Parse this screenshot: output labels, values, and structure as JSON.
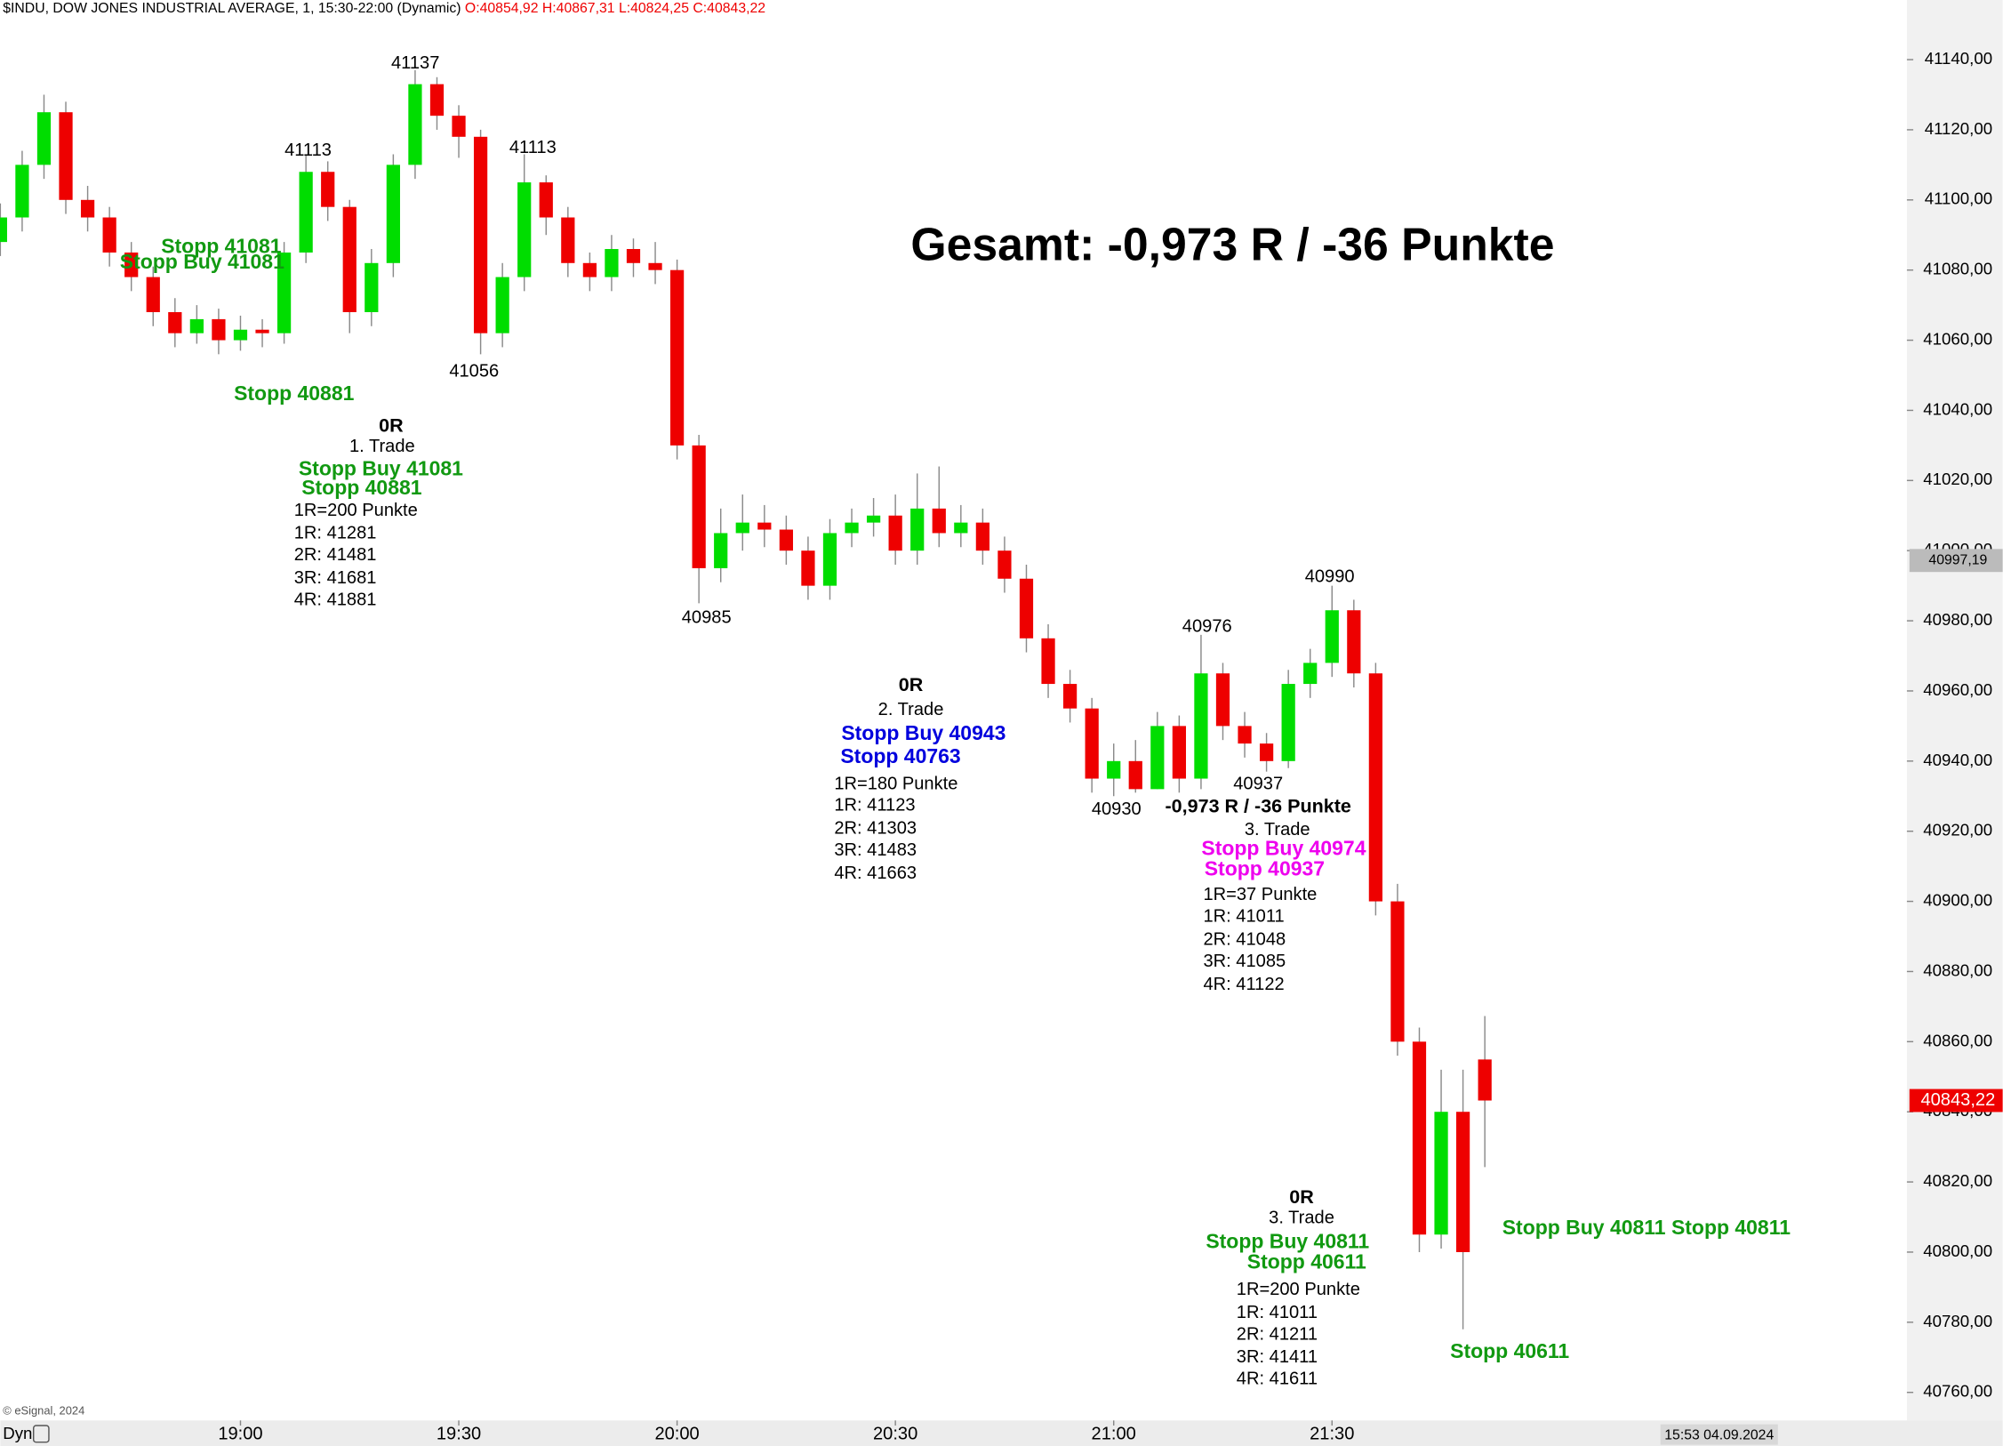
{
  "header": {
    "symbol": "$INDU, DOW JONES INDUSTRIAL AVERAGE, 1, 15:30-22:00 (Dynamic)",
    "ohlc": "O:40854,92 H:40867,31 L:40824,25 C:40843,22"
  },
  "chart_data": {
    "type": "candlestick",
    "x": [
      "18:27",
      "18:30",
      "18:33",
      "18:36",
      "18:39",
      "18:42",
      "18:45",
      "18:48",
      "18:51",
      "18:54",
      "18:57",
      "19:00",
      "19:03",
      "19:06",
      "19:09",
      "19:12",
      "19:15",
      "19:18",
      "19:21",
      "19:24",
      "19:27",
      "19:30",
      "19:33",
      "19:36",
      "19:39",
      "19:42",
      "19:45",
      "19:48",
      "19:51",
      "19:54",
      "19:57",
      "20:00",
      "20:03",
      "20:06",
      "20:09",
      "20:12",
      "20:15",
      "20:18",
      "20:21",
      "20:24",
      "20:27",
      "20:30",
      "20:33",
      "20:36",
      "20:39",
      "20:42",
      "20:45",
      "20:48",
      "20:51",
      "20:54",
      "20:57",
      "21:00",
      "21:03",
      "21:06",
      "21:09",
      "21:12",
      "21:15",
      "21:18",
      "21:21",
      "21:24",
      "21:27",
      "21:30",
      "21:33",
      "21:36",
      "21:39",
      "21:42",
      "21:45",
      "21:48",
      "21:51"
    ],
    "open": [
      41088,
      41095,
      41110,
      41125,
      41100,
      41095,
      41085,
      41078,
      41068,
      41062,
      41066,
      41060,
      41063,
      41062,
      41085,
      41108,
      41098,
      41068,
      41082,
      41110,
      41133,
      41124,
      41118,
      41062,
      41078,
      41105,
      41095,
      41082,
      41078,
      41086,
      41082,
      41080,
      41030,
      40995,
      41005,
      41008,
      41006,
      41000,
      40990,
      41005,
      41008,
      41010,
      41000,
      41012,
      41005,
      41008,
      41000,
      40992,
      40975,
      40962,
      40955,
      40935,
      40940,
      40932,
      40950,
      40935,
      40965,
      40950,
      40945,
      40940,
      40962,
      40968,
      40983,
      40965,
      40900,
      40860,
      40805,
      40840,
      40854.92
    ],
    "high": [
      41099,
      41114,
      41130,
      41128,
      41104,
      41098,
      41088,
      41081,
      41072,
      41070,
      41069,
      41067,
      41066,
      41088,
      41113,
      41111,
      41100,
      41086,
      41113,
      41137,
      41135,
      41127,
      41120,
      41082,
      41113,
      41107,
      41098,
      41085,
      41090,
      41089,
      41088,
      41083,
      41033,
      41012,
      41016,
      41013,
      41010,
      41004,
      41009,
      41012,
      41015,
      41016,
      41022,
      41024,
      41013,
      41012,
      41004,
      40996,
      40979,
      40966,
      40958,
      40945,
      40946,
      40954,
      40953,
      40976,
      40968,
      40954,
      40948,
      40966,
      40972,
      40990,
      40986,
      40968,
      40905,
      40864,
      40852,
      40852,
      40867.31
    ],
    "low": [
      41084,
      41091,
      41106,
      41096,
      41091,
      41081,
      41074,
      41064,
      41058,
      41059,
      41056,
      41057,
      41058,
      41059,
      41082,
      41094,
      41062,
      41064,
      41078,
      41106,
      41120,
      41112,
      41056,
      41058,
      41074,
      41090,
      41078,
      41074,
      41074,
      41078,
      41076,
      41026,
      40985,
      40991,
      41000,
      41001,
      40996,
      40986,
      40986,
      41001,
      41004,
      40996,
      40996,
      41001,
      41001,
      40996,
      40988,
      40971,
      40958,
      40951,
      40931,
      40930,
      40931,
      40932,
      40931,
      40932,
      40946,
      40941,
      40937,
      40938,
      40958,
      40964,
      40961,
      40896,
      40856,
      40800,
      40801,
      40778,
      40824.25
    ],
    "close": [
      41095,
      41110,
      41125,
      41100,
      41095,
      41085,
      41078,
      41068,
      41062,
      41066,
      41060,
      41063,
      41062,
      41085,
      41108,
      41098,
      41068,
      41082,
      41110,
      41133,
      41124,
      41118,
      41062,
      41078,
      41105,
      41095,
      41082,
      41078,
      41086,
      41082,
      41080,
      41030,
      40995,
      41005,
      41008,
      41006,
      41000,
      40990,
      41005,
      41008,
      41010,
      41000,
      41012,
      41005,
      41008,
      41000,
      40992,
      40975,
      40962,
      40955,
      40935,
      40940,
      40932,
      40950,
      40935,
      40965,
      40950,
      40945,
      40940,
      40962,
      40968,
      40983,
      40965,
      40900,
      40860,
      40805,
      40840,
      40800,
      40843.22
    ],
    "up_color": "#00dd00",
    "down_color": "#ee0000",
    "xlim": [
      "18:27",
      "22:49"
    ],
    "xticks": [
      "19:00",
      "19:30",
      "20:00",
      "20:30",
      "21:00",
      "21:30"
    ],
    "ylim": [
      40752,
      41157
    ],
    "yticks": [
      {
        "value": 41140,
        "label": "41140,00"
      },
      {
        "value": 41120,
        "label": "41120,00"
      },
      {
        "value": 41100,
        "label": "41100,00"
      },
      {
        "value": 41080,
        "label": "41080,00"
      },
      {
        "value": 41060,
        "label": "41060,00"
      },
      {
        "value": 41040,
        "label": "41040,00"
      },
      {
        "value": 41020,
        "label": "41020,00"
      },
      {
        "value": 41000,
        "label": "41000,00"
      },
      {
        "value": 40980,
        "label": "40980,00"
      },
      {
        "value": 40960,
        "label": "40960,00"
      },
      {
        "value": 40940,
        "label": "40940,00"
      },
      {
        "value": 40920,
        "label": "40920,00"
      },
      {
        "value": 40900,
        "label": "40900,00"
      },
      {
        "value": 40880,
        "label": "40880,00"
      },
      {
        "value": 40860,
        "label": "40860,00"
      },
      {
        "value": 40840,
        "label": "40840,00"
      },
      {
        "value": 40820,
        "label": "40820,00"
      },
      {
        "value": 40800,
        "label": "40800,00"
      },
      {
        "value": 40780,
        "label": "40780,00"
      },
      {
        "value": 40760,
        "label": "40760,00"
      }
    ],
    "price_markers": [
      {
        "value": 40997.19,
        "label": "40997,19",
        "color": "#bbbbbb"
      },
      {
        "value": 40843.22,
        "label": "40843,22",
        "color": "#ee0000"
      }
    ],
    "annotations": [
      {
        "text": "41137",
        "color": "#000000"
      },
      {
        "text": "41113",
        "color": "#000000"
      },
      {
        "text": "41113",
        "color": "#000000"
      },
      {
        "text": "41056",
        "color": "#000000"
      },
      {
        "text": "40985",
        "color": "#000000"
      },
      {
        "text": "40930",
        "color": "#000000"
      },
      {
        "text": "40976",
        "color": "#000000"
      },
      {
        "text": "40937",
        "color": "#000000"
      },
      {
        "text": "40990",
        "color": "#000000"
      },
      {
        "text": "Stopp 41081",
        "color": "#119911"
      },
      {
        "text": "Stopp Buy 41081",
        "color": "#119911"
      },
      {
        "text": "Stopp 40881",
        "color": "#119911"
      },
      {
        "text": "0R",
        "color": "#000000"
      },
      {
        "text": "1. Trade",
        "color": "#000000"
      },
      {
        "text": "Stopp Buy 41081",
        "color": "#119911"
      },
      {
        "text": "Stopp 40881",
        "color": "#119911"
      },
      {
        "text": "1R=200 Punkte",
        "color": "#000000"
      },
      {
        "text": "1R: 41281",
        "color": "#000000"
      },
      {
        "text": "2R: 41481",
        "color": "#000000"
      },
      {
        "text": "3R: 41681",
        "color": "#000000"
      },
      {
        "text": "4R: 41881",
        "color": "#000000"
      },
      {
        "text": "Gesamt: -0,973 R / -36 Punkte",
        "color": "#000000"
      },
      {
        "text": "0R",
        "color": "#000000"
      },
      {
        "text": "2. Trade",
        "color": "#000000"
      },
      {
        "text": "Stopp Buy 40943",
        "color": "#0000dd"
      },
      {
        "text": "Stopp 40763",
        "color": "#0000dd"
      },
      {
        "text": "1R=180 Punkte",
        "color": "#000000"
      },
      {
        "text": "1R: 41123",
        "color": "#000000"
      },
      {
        "text": "2R: 41303",
        "color": "#000000"
      },
      {
        "text": "3R: 41483",
        "color": "#000000"
      },
      {
        "text": "4R: 41663",
        "color": "#000000"
      },
      {
        "text": "-0,973 R / -36 Punkte",
        "color": "#000000"
      },
      {
        "text": "3. Trade",
        "color": "#000000"
      },
      {
        "text": "Stopp Buy 40974",
        "color": "#ee00ee"
      },
      {
        "text": "Stopp 40937",
        "color": "#ee00ee"
      },
      {
        "text": "1R=37 Punkte",
        "color": "#000000"
      },
      {
        "text": "1R: 41011",
        "color": "#000000"
      },
      {
        "text": "2R: 41048",
        "color": "#000000"
      },
      {
        "text": "3R: 41085",
        "color": "#000000"
      },
      {
        "text": "4R: 41122",
        "color": "#000000"
      },
      {
        "text": "0R",
        "color": "#000000"
      },
      {
        "text": "3. Trade",
        "color": "#000000"
      },
      {
        "text": "Stopp Buy 40811",
        "color": "#119911"
      },
      {
        "text": "Stopp 40611",
        "color": "#119911"
      },
      {
        "text": "1R=200 Punkte",
        "color": "#000000"
      },
      {
        "text": "1R: 41011",
        "color": "#000000"
      },
      {
        "text": "2R: 41211",
        "color": "#000000"
      },
      {
        "text": "3R: 41411",
        "color": "#000000"
      },
      {
        "text": "4R: 41611",
        "color": "#000000"
      },
      {
        "text": "Stopp Buy 40811 Stopp 40811",
        "color": "#119911"
      },
      {
        "text": "Stopp 40611",
        "color": "#119911"
      }
    ]
  },
  "footer": {
    "copyright": "© eSignal, 2024",
    "mode": "Dyn",
    "timestamp": "15:53 04.09.2024"
  }
}
